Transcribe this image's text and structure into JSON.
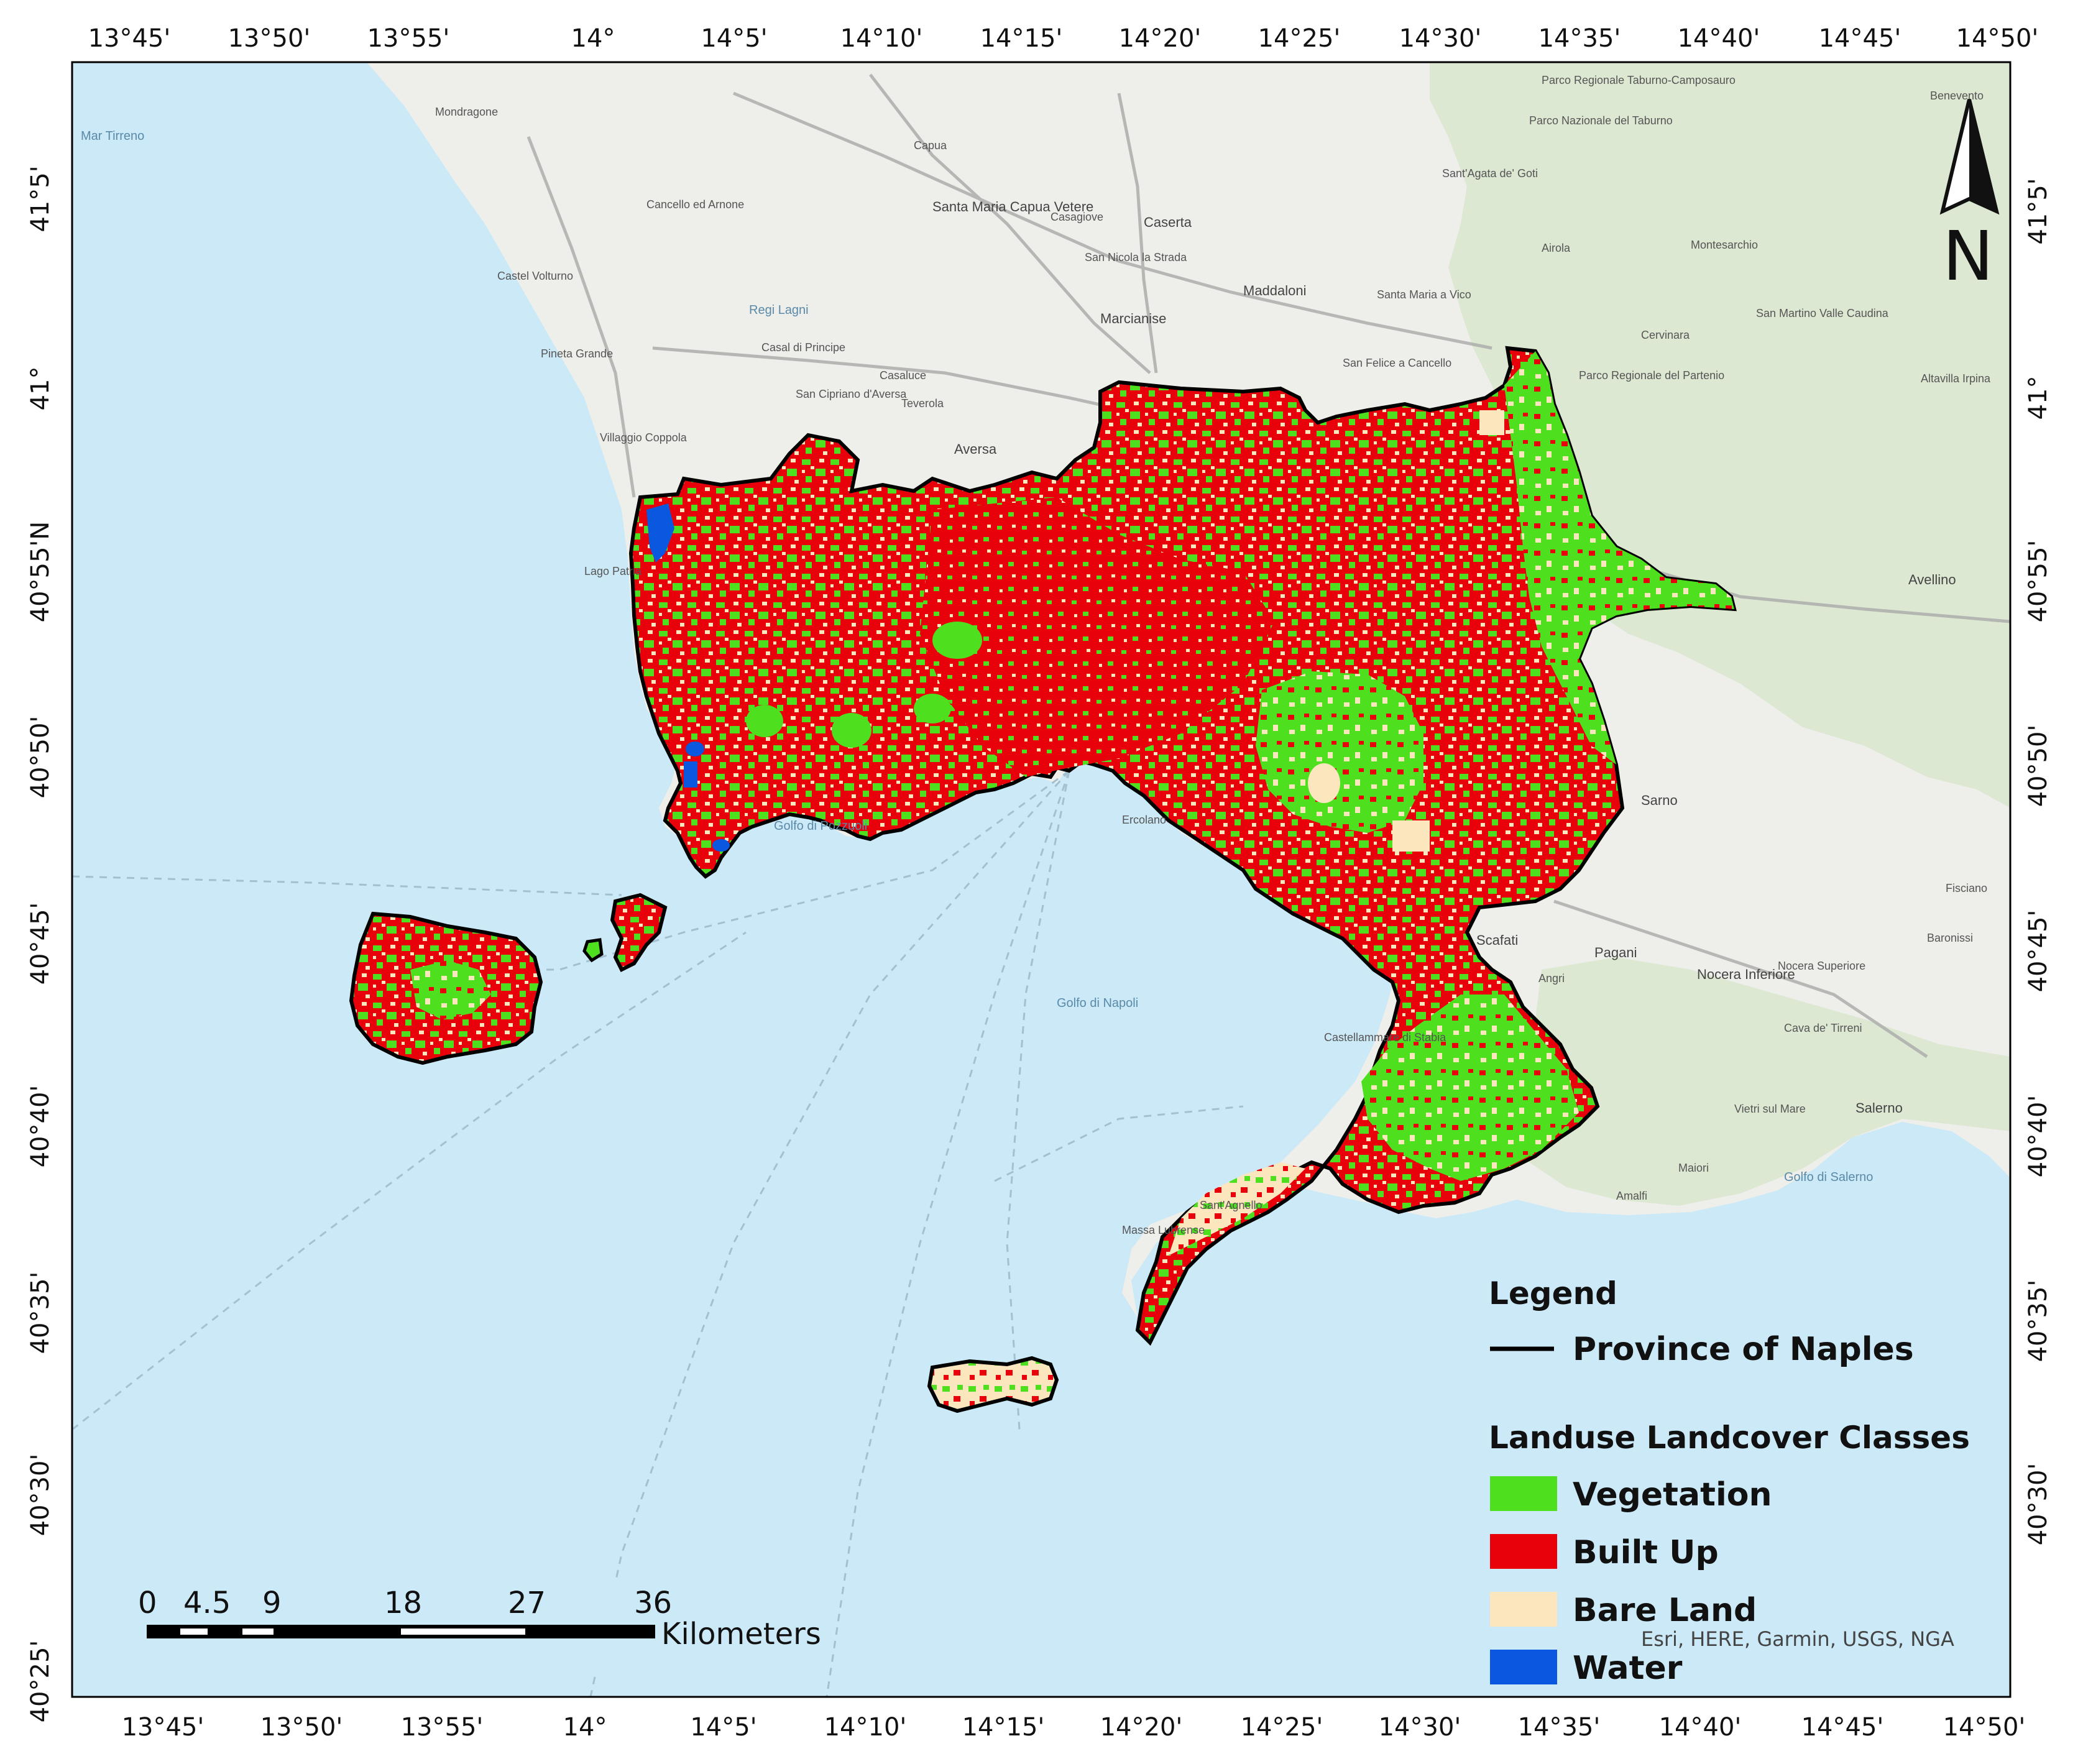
{
  "map": {
    "top_ticks": [
      "13°45'",
      "13°50'",
      "13°55'",
      "14°",
      "14°5'",
      "14°10'",
      "14°15'",
      "14°20'",
      "14°25'",
      "14°30'",
      "14°35'",
      "14°40'",
      "14°45'",
      "14°50'"
    ],
    "bottom_ticks": [
      "13°45'",
      "13°50'",
      "13°55'",
      "14°",
      "14°5'",
      "14°10'",
      "14°15'",
      "14°20'",
      "14°25'",
      "14°30'",
      "14°35'",
      "14°40'",
      "14°45'",
      "14°50'"
    ],
    "left_ticks": [
      "41°5'",
      "41°",
      "40°55'N",
      "40°50'",
      "40°45'",
      "40°40'",
      "40°35'",
      "40°30'",
      "40°25'"
    ],
    "right_ticks": [
      "41°5'",
      "41°",
      "40°55'",
      "40°50'",
      "40°45'",
      "40°40'",
      "40°35'",
      "40°30'"
    ],
    "north_arrow": "N",
    "colors": {
      "sea": "#cbe9f7",
      "land": "#eeeeea",
      "hills": "#d9e6cf",
      "vegetation": "#4ee01f",
      "built_up": "#e8000b",
      "bare_land": "#fbe6be",
      "water": "#0a57e0",
      "boundary": "#000000"
    },
    "places": [
      {
        "name": "Mondragone"
      },
      {
        "name": "Capua"
      },
      {
        "name": "Santa Maria Capua Vetere"
      },
      {
        "name": "Casagiove"
      },
      {
        "name": "Caserta"
      },
      {
        "name": "San Nicola la Strada"
      },
      {
        "name": "Cancello ed Arnone"
      },
      {
        "name": "Castel Volturno"
      },
      {
        "name": "Maddaloni"
      },
      {
        "name": "Marcianise"
      },
      {
        "name": "Pineta Grande"
      },
      {
        "name": "Casal di Principe"
      },
      {
        "name": "Casaluce"
      },
      {
        "name": "Teverola"
      },
      {
        "name": "San Cipriano d'Aversa"
      },
      {
        "name": "Aversa"
      },
      {
        "name": "Villaggio Coppola"
      },
      {
        "name": "Lago Patria"
      },
      {
        "name": "Santa Maria a Vico"
      },
      {
        "name": "San Felice a Cancello"
      },
      {
        "name": "Sant'Agata de' Goti"
      },
      {
        "name": "Airola"
      },
      {
        "name": "Montesarchio"
      },
      {
        "name": "Cervinara"
      },
      {
        "name": "San Martino Valle Caudina"
      },
      {
        "name": "Altavilla Irpina"
      },
      {
        "name": "Avellino"
      },
      {
        "name": "Benevento"
      },
      {
        "name": "Sarno"
      },
      {
        "name": "Scafati"
      },
      {
        "name": "Pagani"
      },
      {
        "name": "Nocera Inferiore"
      },
      {
        "name": "Nocera Superiore"
      },
      {
        "name": "Baronissi"
      },
      {
        "name": "Fisciano"
      },
      {
        "name": "Cava de' Tirreni"
      },
      {
        "name": "Salerno"
      },
      {
        "name": "Vietri sul Mare"
      },
      {
        "name": "Maiori"
      },
      {
        "name": "Amalfi"
      },
      {
        "name": "Castellammare di Stabia"
      },
      {
        "name": "Angri"
      },
      {
        "name": "Ercolano"
      },
      {
        "name": "Massa Lubrense"
      },
      {
        "name": "Sant'Agnello"
      },
      {
        "name": "Regi Lagni"
      },
      {
        "name": "Parco Regionale Taburno-Camposauro"
      },
      {
        "name": "Parco Nazionale del Taburno"
      },
      {
        "name": "Parco Regionale del Partenio"
      }
    ],
    "sea_labels": [
      "Mar Tirreno",
      "Golfo di Pozzuoli",
      "Golfo di Napoli",
      "Golfo di Salerno"
    ]
  },
  "legend": {
    "title": "Legend",
    "boundary_label": "Province of Naples",
    "classes_title": "Landuse Landcover Classes",
    "items": [
      {
        "label": "Vegetation",
        "color": "#4ee01f"
      },
      {
        "label": "Built Up",
        "color": "#e8000b"
      },
      {
        "label": "Bare Land",
        "color": "#fbe6be"
      },
      {
        "label": "Water",
        "color": "#0a57e0"
      }
    ]
  },
  "scale_bar": {
    "labels": [
      "0",
      "4.5",
      "9",
      "18",
      "27",
      "36"
    ],
    "unit": "Kilometers"
  },
  "credit": "Esri, HERE, Garmin, USGS, NGA"
}
